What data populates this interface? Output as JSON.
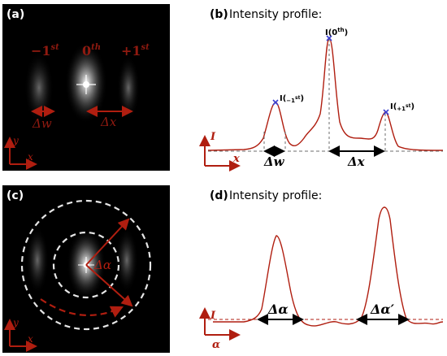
{
  "colors": {
    "red": "#b01e10",
    "dark_red": "#8f1a10",
    "blue_marker": "#3a3fd0",
    "black_panel": "#000000",
    "guide_gray": "#6e6e6e",
    "ring": "#e6e6e6"
  },
  "panel_a": {
    "label": "(a)",
    "order_minus": "−1",
    "order_minus_sup": "st",
    "order_zero": "0",
    "order_zero_sup": "th",
    "order_plus": "+1",
    "order_plus_sup": "st",
    "delta_w": "Δw",
    "delta_x": "Δx",
    "axis_y": "y",
    "axis_x": "x"
  },
  "panel_b": {
    "label": "(b)",
    "title": "Intensity profile:",
    "peak_zero": "I(0",
    "peak_zero_sup": "th",
    "peak_zero_close": ")",
    "peak_minus": "I(",
    "peak_minus_sub": "−1",
    "peak_minus_sup": "st",
    "peak_minus_close": ")",
    "peak_plus": "I(",
    "peak_plus_sub": "+1",
    "peak_plus_sup": "st",
    "peak_plus_close": ")",
    "axis_i": "I",
    "axis_x": "x",
    "delta_w": "Δw",
    "delta_x": "Δx"
  },
  "panel_c": {
    "label": "(c)",
    "delta_alpha": "Δα",
    "axis_y": "y",
    "axis_x": "x"
  },
  "panel_d": {
    "label": "(d)",
    "title": "Intensity profile:",
    "axis_i": "I",
    "axis_alpha": "α",
    "delta_alpha": "Δα",
    "delta_alpha_prime": "Δα′"
  }
}
